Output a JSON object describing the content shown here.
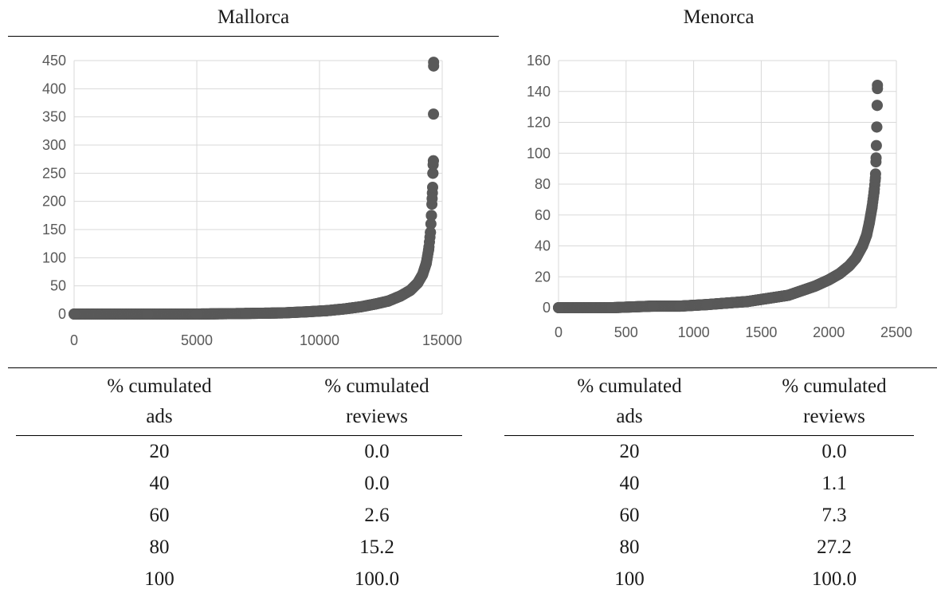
{
  "panels": [
    {
      "title": "Mallorca"
    },
    {
      "title": "Menorca"
    }
  ],
  "chart_data": [
    {
      "type": "scatter",
      "title": "Mallorca",
      "xlabel": "",
      "ylabel": "",
      "xlim": [
        0,
        15000
      ],
      "ylim": [
        0,
        450
      ],
      "x_ticks": [
        "0",
        "5000",
        "10000",
        "15000"
      ],
      "y_ticks": [
        "0",
        "50",
        "100",
        "150",
        "200",
        "250",
        "300",
        "350",
        "400",
        "450"
      ],
      "grid": true,
      "color": "#595959",
      "n_points": 14650,
      "series": [
        {
          "x": [
            0,
            3000,
            5000,
            7000,
            8500,
            9500,
            10300,
            11000,
            11700,
            12300,
            12800,
            13300,
            13700,
            14000,
            14200,
            14350,
            14450,
            14520,
            14560,
            14590,
            14610,
            14620,
            14630,
            14640,
            14645,
            14650
          ],
          "y": [
            0,
            0,
            0,
            1,
            2,
            4,
            6,
            9,
            13,
            18,
            23,
            32,
            42,
            55,
            70,
            90,
            115,
            145,
            175,
            205,
            225,
            250,
            265,
            272,
            355,
            447
          ]
        }
      ]
    },
    {
      "type": "scatter",
      "title": "Menorca",
      "xlabel": "",
      "ylabel": "",
      "xlim": [
        0,
        2500
      ],
      "ylim": [
        0,
        160
      ],
      "x_ticks": [
        "0",
        "500",
        "1000",
        "1500",
        "2000",
        "2500"
      ],
      "y_ticks": [
        "0",
        "20",
        "40",
        "60",
        "80",
        "100",
        "120",
        "140",
        "160"
      ],
      "grid": true,
      "color": "#595959",
      "n_points": 2360,
      "series": [
        {
          "x": [
            0,
            400,
            700,
            900,
            1100,
            1250,
            1400,
            1550,
            1700,
            1800,
            1900,
            2000,
            2080,
            2150,
            2200,
            2250,
            2280,
            2300,
            2320,
            2335,
            2345,
            2350,
            2355,
            2358,
            2360
          ],
          "y": [
            0,
            0,
            1,
            1,
            2,
            3,
            4,
            6,
            8,
            11,
            14,
            18,
            22,
            27,
            32,
            40,
            47,
            55,
            65,
            75,
            84,
            97,
            117,
            131,
            144
          ]
        }
      ]
    }
  ],
  "tables": [
    {
      "headers": [
        [
          "% cumulated",
          "ads"
        ],
        [
          "% cumulated",
          "reviews"
        ]
      ],
      "rows": [
        [
          "20",
          "0.0"
        ],
        [
          "40",
          "0.0"
        ],
        [
          "60",
          "2.6"
        ],
        [
          "80",
          "15.2"
        ],
        [
          "100",
          "100.0"
        ]
      ]
    },
    {
      "headers": [
        [
          "% cumulated",
          "ads"
        ],
        [
          "% cumulated",
          "reviews"
        ]
      ],
      "rows": [
        [
          "20",
          "0.0"
        ],
        [
          "40",
          "1.1"
        ],
        [
          "60",
          "7.3"
        ],
        [
          "80",
          "27.2"
        ],
        [
          "100",
          "100.0"
        ]
      ]
    }
  ]
}
